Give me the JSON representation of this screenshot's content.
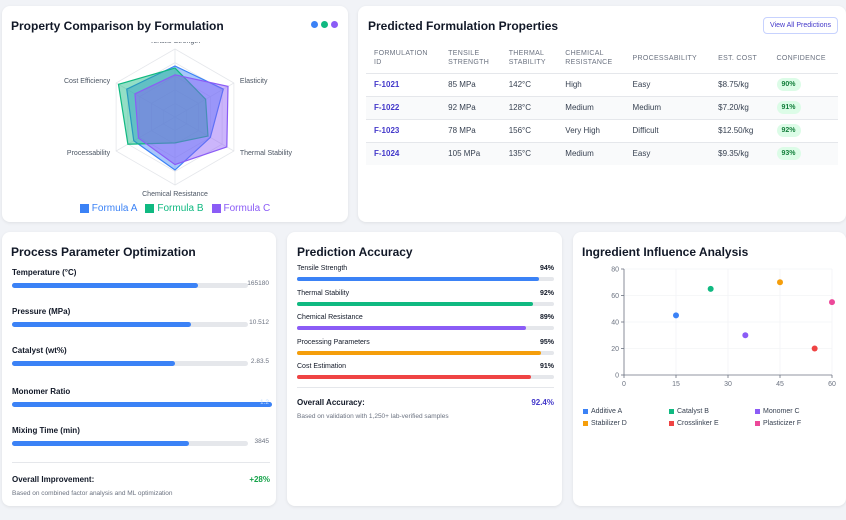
{
  "radar": {
    "title": "Property Comparison by Formulation",
    "header_dots": [
      "#3b82f6",
      "#10b981",
      "#8b5cf6"
    ],
    "axes": [
      "Tensile Strength",
      "Elasticity",
      "Thermal Stability",
      "Chemical Resistance",
      "Processability",
      "Cost Efficiency"
    ],
    "series": [
      {
        "name": "Formula A",
        "color": "#3b82f6",
        "values": [
          75,
          82,
          60,
          78,
          70,
          82
        ]
      },
      {
        "name": "Formula B",
        "color": "#10b981",
        "values": [
          72,
          52,
          56,
          38,
          80,
          96
        ]
      },
      {
        "name": "Formula C",
        "color": "#8b5cf6",
        "values": [
          62,
          90,
          88,
          70,
          62,
          68
        ]
      }
    ],
    "max": 100
  },
  "table": {
    "title": "Predicted Formulation Properties",
    "view_all_label": "View All Predictions",
    "headers": [
      [
        "FORMULATION",
        "ID"
      ],
      [
        "TENSILE",
        "STRENGTH"
      ],
      [
        "THERMAL",
        "STABILITY"
      ],
      [
        "CHEMICAL",
        "RESISTANCE"
      ],
      [
        "PROCESSABILITY",
        ""
      ],
      [
        "EST. COST",
        ""
      ],
      [
        "CONFIDENCE",
        ""
      ]
    ],
    "rows": [
      [
        "F-1021",
        "85 MPa",
        "142°C",
        "High",
        "Easy",
        "$8.75/kg",
        "90%"
      ],
      [
        "F-1022",
        "92 MPa",
        "128°C",
        "Medium",
        "Medium",
        "$7.20/kg",
        "91%"
      ],
      [
        "F-1023",
        "78 MPa",
        "156°C",
        "Very High",
        "Difficult",
        "$12.50/kg",
        "92%"
      ],
      [
        "F-1024",
        "105 MPa",
        "135°C",
        "Medium",
        "Easy",
        "$9.35/kg",
        "93%"
      ]
    ]
  },
  "process": {
    "title": "Process Parameter Optimization",
    "params": [
      {
        "label": "Temperature (°C)",
        "value": "165180",
        "fraction": 0.79
      },
      {
        "label": "Pressure (MPa)",
        "value": "10.512",
        "fraction": 0.76
      },
      {
        "label": "Catalyst (wt%)",
        "value": "2.83.5",
        "fraction": 0.69
      },
      {
        "label": "Monomer Ratio",
        "value": "1.2",
        "fraction": 1.0
      },
      {
        "label": "Mixing Time (min)",
        "value": "3845",
        "fraction": 0.75
      }
    ],
    "summary_label": "Overall Improvement:",
    "summary_value": "+28%",
    "summary_note": "Based on combined factor analysis and ML optimization"
  },
  "accuracy": {
    "title": "Prediction Accuracy",
    "items": [
      {
        "label": "Tensile Strength",
        "value": "94%",
        "fraction": 0.94,
        "color": "#3b82f6"
      },
      {
        "label": "Thermal Stability",
        "value": "92%",
        "fraction": 0.92,
        "color": "#10b981"
      },
      {
        "label": "Chemical Resistance",
        "value": "89%",
        "fraction": 0.89,
        "color": "#8b5cf6"
      },
      {
        "label": "Processing Parameters",
        "value": "95%",
        "fraction": 0.95,
        "color": "#f59e0b"
      },
      {
        "label": "Cost Estimation",
        "value": "91%",
        "fraction": 0.91,
        "color": "#ef4444"
      }
    ],
    "overall_label": "Overall Accuracy:",
    "overall_value": "92.4%",
    "note": "Based on validation with 1,250+ lab-verified samples"
  },
  "influence": {
    "title": "Ingredient Influence Analysis",
    "chart_data": {
      "type": "scatter",
      "xlim": [
        0,
        60
      ],
      "ylim": [
        0,
        80
      ],
      "xticks": [
        0,
        15,
        30,
        45,
        60
      ],
      "yticks": [
        0,
        20,
        40,
        60,
        80
      ],
      "series": [
        {
          "name": "Additive A",
          "color": "#3b82f6",
          "x": 15,
          "y": 45
        },
        {
          "name": "Catalyst B",
          "color": "#10b981",
          "x": 25,
          "y": 65
        },
        {
          "name": "Monomer C",
          "color": "#8b5cf6",
          "x": 35,
          "y": 30
        },
        {
          "name": "Stabilizer D",
          "color": "#f59e0b",
          "x": 45,
          "y": 70
        },
        {
          "name": "Crosslinker E",
          "color": "#ef4444",
          "x": 55,
          "y": 20
        },
        {
          "name": "Plasticizer F",
          "color": "#ec4899",
          "x": 60,
          "y": 55
        }
      ]
    }
  }
}
